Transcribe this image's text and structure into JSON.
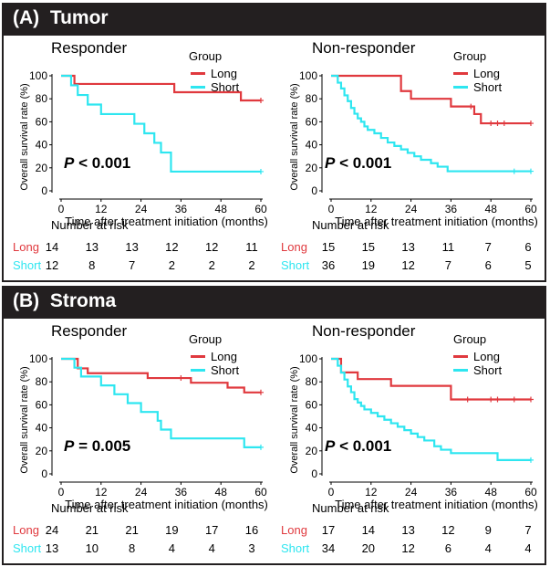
{
  "colors": {
    "long": "#e0393e",
    "short": "#2ee6f0",
    "bar": "#231f20"
  },
  "sections": [
    {
      "label": "(A)  Tumor"
    },
    {
      "label": "(B)  Stroma"
    }
  ],
  "common": {
    "xlabel": "Time after treatment initiation (months)",
    "ylabel": "Overall survival rate (%)",
    "legend_title": "Group",
    "legend_long": "Long",
    "legend_short": "Short",
    "risk_title": "Number at risk",
    "xticks": [
      "0",
      "12",
      "24",
      "36",
      "48",
      "60"
    ],
    "yticks": [
      "0",
      "20",
      "40",
      "60",
      "80",
      "100"
    ]
  },
  "chart_data": [
    {
      "type": "line",
      "step": true,
      "title": "Responder",
      "p_label": "P",
      "p_value": "< 0.001",
      "xlim": [
        0,
        60
      ],
      "ylim": [
        0,
        100
      ],
      "series": [
        {
          "name": "Long",
          "color": "#e0393e",
          "x": [
            0,
            4,
            34,
            54,
            60
          ],
          "y": [
            100,
            92.9,
            85.7,
            78.6,
            78.6
          ],
          "censor_x": [
            60
          ]
        },
        {
          "name": "Short",
          "color": "#2ee6f0",
          "x": [
            0,
            3,
            5,
            8,
            12,
            22,
            25,
            28,
            30,
            33,
            60
          ],
          "y": [
            100,
            91.7,
            83.3,
            75,
            66.7,
            58.3,
            50,
            41.7,
            33.3,
            16.7,
            16.7
          ],
          "censor_x": [
            60
          ]
        }
      ],
      "risk": {
        "Long": [
          "14",
          "13",
          "13",
          "12",
          "12",
          "11"
        ],
        "Short": [
          "12",
          "8",
          "7",
          "2",
          "2",
          "2"
        ]
      }
    },
    {
      "type": "line",
      "step": true,
      "title": "Non-responder",
      "p_label": "P",
      "p_value": "< 0.001",
      "xlim": [
        0,
        60
      ],
      "ylim": [
        0,
        100
      ],
      "series": [
        {
          "name": "Long",
          "color": "#e0393e",
          "x": [
            0,
            21,
            24,
            36,
            43,
            45,
            60
          ],
          "y": [
            100,
            86.7,
            80,
            73.3,
            66.7,
            58.7,
            58.7
          ],
          "censor_x": [
            42,
            48,
            50,
            52,
            60
          ]
        },
        {
          "name": "Short",
          "color": "#2ee6f0",
          "x": [
            0,
            2,
            3,
            4,
            5,
            6,
            7,
            8,
            9,
            10,
            11,
            13,
            15,
            17,
            19,
            21,
            23,
            25,
            27,
            30,
            32,
            35,
            60
          ],
          "y": [
            100,
            94,
            89,
            83,
            78,
            72,
            67,
            63,
            60,
            56,
            53,
            50,
            46,
            42,
            39,
            36,
            33,
            30,
            27,
            24,
            21,
            17,
            17
          ],
          "censor_x": [
            55,
            60
          ]
        }
      ],
      "risk": {
        "Long": [
          "15",
          "15",
          "13",
          "11",
          "7",
          "6"
        ],
        "Short": [
          "36",
          "19",
          "12",
          "7",
          "6",
          "5"
        ]
      }
    },
    {
      "type": "line",
      "step": true,
      "title": "Responder",
      "p_label": "P",
      "p_value": "= 0.005",
      "xlim": [
        0,
        60
      ],
      "ylim": [
        0,
        100
      ],
      "series": [
        {
          "name": "Long",
          "color": "#e0393e",
          "x": [
            0,
            5,
            8,
            26,
            39,
            50,
            55,
            60
          ],
          "y": [
            100,
            91.7,
            87.5,
            83.3,
            79.2,
            75,
            70.8,
            70.8
          ],
          "censor_x": [
            36,
            60
          ]
        },
        {
          "name": "Short",
          "color": "#2ee6f0",
          "x": [
            0,
            4,
            6,
            12,
            16,
            20,
            24,
            29,
            30,
            33,
            55,
            60
          ],
          "y": [
            100,
            92.3,
            84.6,
            76.9,
            69.2,
            61.5,
            53.8,
            46.2,
            38.5,
            30.8,
            23.1,
            23.1
          ],
          "censor_x": [
            60
          ]
        }
      ],
      "risk": {
        "Long": [
          "24",
          "21",
          "21",
          "19",
          "17",
          "16"
        ],
        "Short": [
          "13",
          "10",
          "8",
          "4",
          "4",
          "3"
        ]
      }
    },
    {
      "type": "line",
      "step": true,
      "title": "Non-responder",
      "p_label": "P",
      "p_value": "< 0.001",
      "xlim": [
        0,
        60
      ],
      "ylim": [
        0,
        100
      ],
      "series": [
        {
          "name": "Long",
          "color": "#e0393e",
          "x": [
            0,
            3,
            8,
            18,
            36,
            60
          ],
          "y": [
            100,
            88.2,
            82.4,
            76.5,
            64.7,
            64.7
          ],
          "censor_x": [
            41,
            48,
            50,
            55,
            60
          ]
        },
        {
          "name": "Short",
          "color": "#2ee6f0",
          "x": [
            0,
            2,
            3,
            4,
            5,
            6,
            7,
            8,
            9,
            10,
            12,
            14,
            16,
            18,
            20,
            22,
            24,
            26,
            28,
            31,
            33,
            36,
            50,
            60
          ],
          "y": [
            100,
            94,
            88,
            82,
            76,
            71,
            65,
            62,
            59,
            56,
            53,
            50,
            47,
            44,
            41,
            38,
            35,
            32,
            29,
            24,
            21,
            18,
            12,
            12
          ],
          "censor_x": [
            60
          ]
        }
      ],
      "risk": {
        "Long": [
          "17",
          "14",
          "13",
          "12",
          "9",
          "7"
        ],
        "Short": [
          "34",
          "20",
          "12",
          "6",
          "4",
          "4"
        ]
      }
    }
  ]
}
